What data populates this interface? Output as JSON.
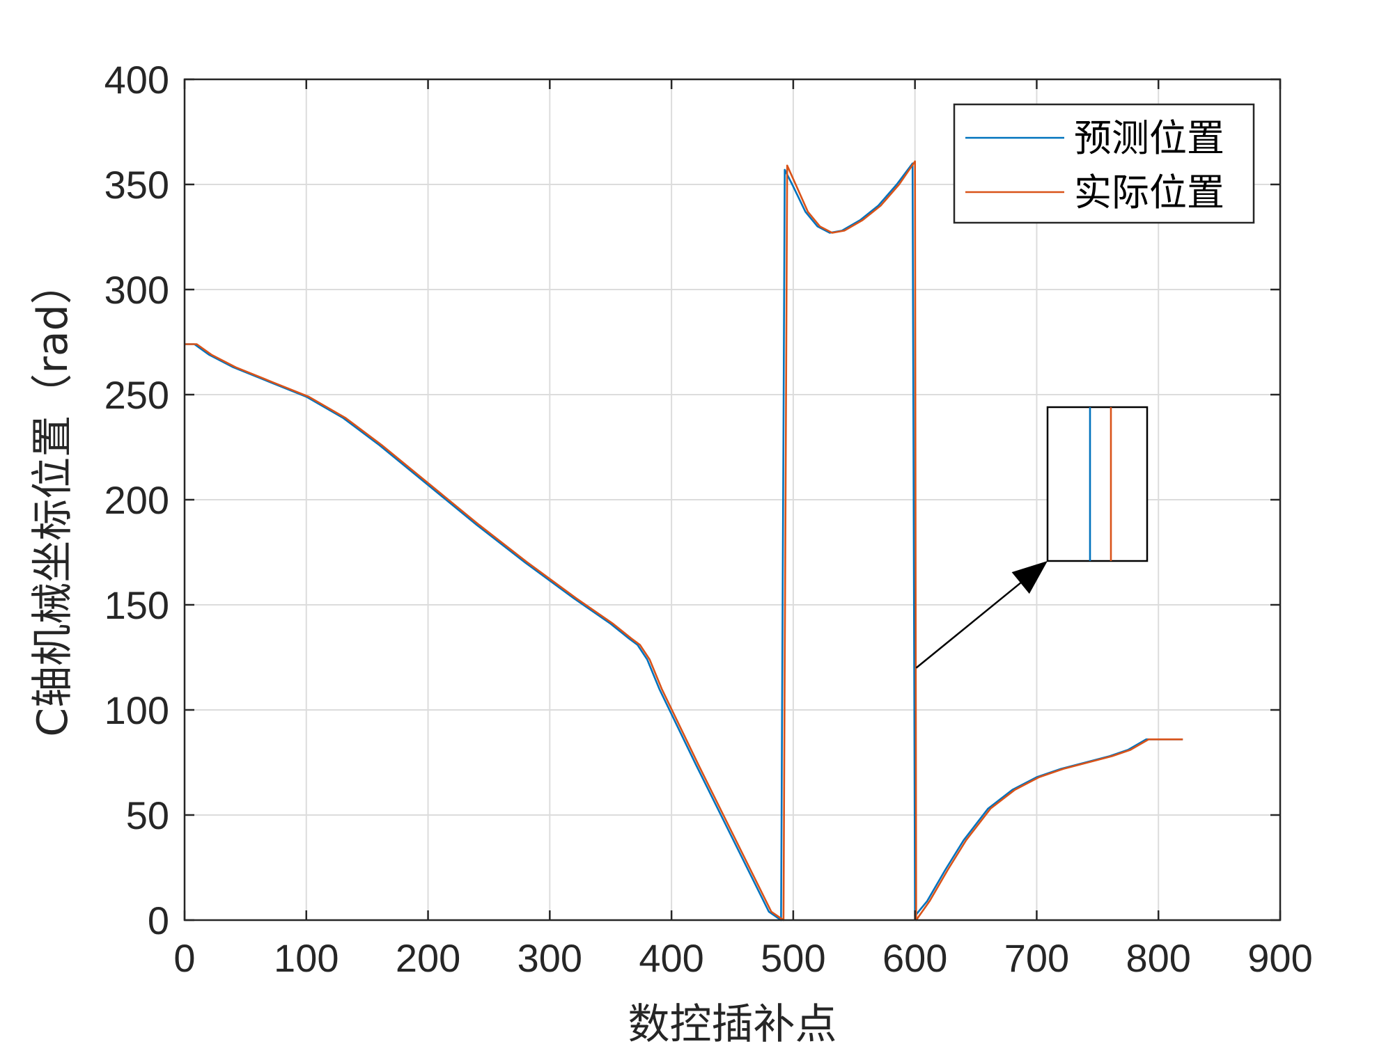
{
  "chart_data": {
    "type": "line",
    "xlabel": "数控插补点",
    "ylabel": "C轴机械坐标位置（rad）",
    "xlim": [
      0,
      900
    ],
    "ylim": [
      0,
      400
    ],
    "xticks": [
      0,
      100,
      200,
      300,
      400,
      500,
      600,
      700,
      800,
      900
    ],
    "yticks": [
      0,
      50,
      100,
      150,
      200,
      250,
      300,
      350,
      400
    ],
    "grid": true,
    "legend_position": "top-right",
    "series": [
      {
        "name": "预测位置",
        "color": "#0072BD",
        "points": [
          [
            0,
            274
          ],
          [
            8,
            274
          ],
          [
            20,
            269
          ],
          [
            40,
            263
          ],
          [
            70,
            256
          ],
          [
            100,
            249
          ],
          [
            130,
            239
          ],
          [
            160,
            226
          ],
          [
            200,
            207
          ],
          [
            240,
            188
          ],
          [
            280,
            170
          ],
          [
            320,
            153
          ],
          [
            350,
            141
          ],
          [
            365,
            134
          ],
          [
            372,
            131
          ],
          [
            380,
            124
          ],
          [
            390,
            110
          ],
          [
            420,
            74
          ],
          [
            450,
            39
          ],
          [
            480,
            4
          ],
          [
            490,
            0
          ],
          [
            493,
            357
          ],
          [
            500,
            349
          ],
          [
            510,
            337
          ],
          [
            520,
            330
          ],
          [
            530,
            327
          ],
          [
            540,
            328
          ],
          [
            555,
            333
          ],
          [
            570,
            340
          ],
          [
            585,
            350
          ],
          [
            598,
            360
          ],
          [
            600,
            2
          ],
          [
            610,
            9
          ],
          [
            625,
            24
          ],
          [
            640,
            38
          ],
          [
            660,
            53
          ],
          [
            680,
            62
          ],
          [
            700,
            68
          ],
          [
            720,
            72
          ],
          [
            740,
            75
          ],
          [
            760,
            78
          ],
          [
            775,
            81
          ],
          [
            790,
            86
          ],
          [
            800,
            86
          ],
          [
            820,
            86
          ]
        ]
      },
      {
        "name": "实际位置",
        "color": "#D95319",
        "points": [
          [
            0,
            274
          ],
          [
            10,
            274
          ],
          [
            22,
            269
          ],
          [
            42,
            263
          ],
          [
            72,
            256
          ],
          [
            102,
            249
          ],
          [
            132,
            239
          ],
          [
            162,
            226
          ],
          [
            202,
            207
          ],
          [
            242,
            188
          ],
          [
            282,
            170
          ],
          [
            322,
            153
          ],
          [
            352,
            141
          ],
          [
            367,
            134
          ],
          [
            374,
            131
          ],
          [
            382,
            124
          ],
          [
            392,
            110
          ],
          [
            422,
            74
          ],
          [
            452,
            39
          ],
          [
            482,
            4
          ],
          [
            492,
            0
          ],
          [
            495,
            359
          ],
          [
            502,
            350
          ],
          [
            512,
            337
          ],
          [
            522,
            330
          ],
          [
            532,
            327
          ],
          [
            542,
            328
          ],
          [
            557,
            333
          ],
          [
            572,
            340
          ],
          [
            587,
            350
          ],
          [
            600,
            361
          ],
          [
            601,
            0
          ],
          [
            612,
            9
          ],
          [
            627,
            24
          ],
          [
            642,
            38
          ],
          [
            662,
            53
          ],
          [
            682,
            62
          ],
          [
            702,
            68
          ],
          [
            722,
            72
          ],
          [
            742,
            75
          ],
          [
            762,
            78
          ],
          [
            777,
            81
          ],
          [
            792,
            86
          ],
          [
            802,
            86
          ],
          [
            820,
            86
          ]
        ]
      }
    ],
    "annotation": {
      "type": "zoom-inset",
      "arrow_target": [
        601,
        120
      ],
      "inset_series_order": [
        "预测位置",
        "实际位置"
      ]
    }
  }
}
